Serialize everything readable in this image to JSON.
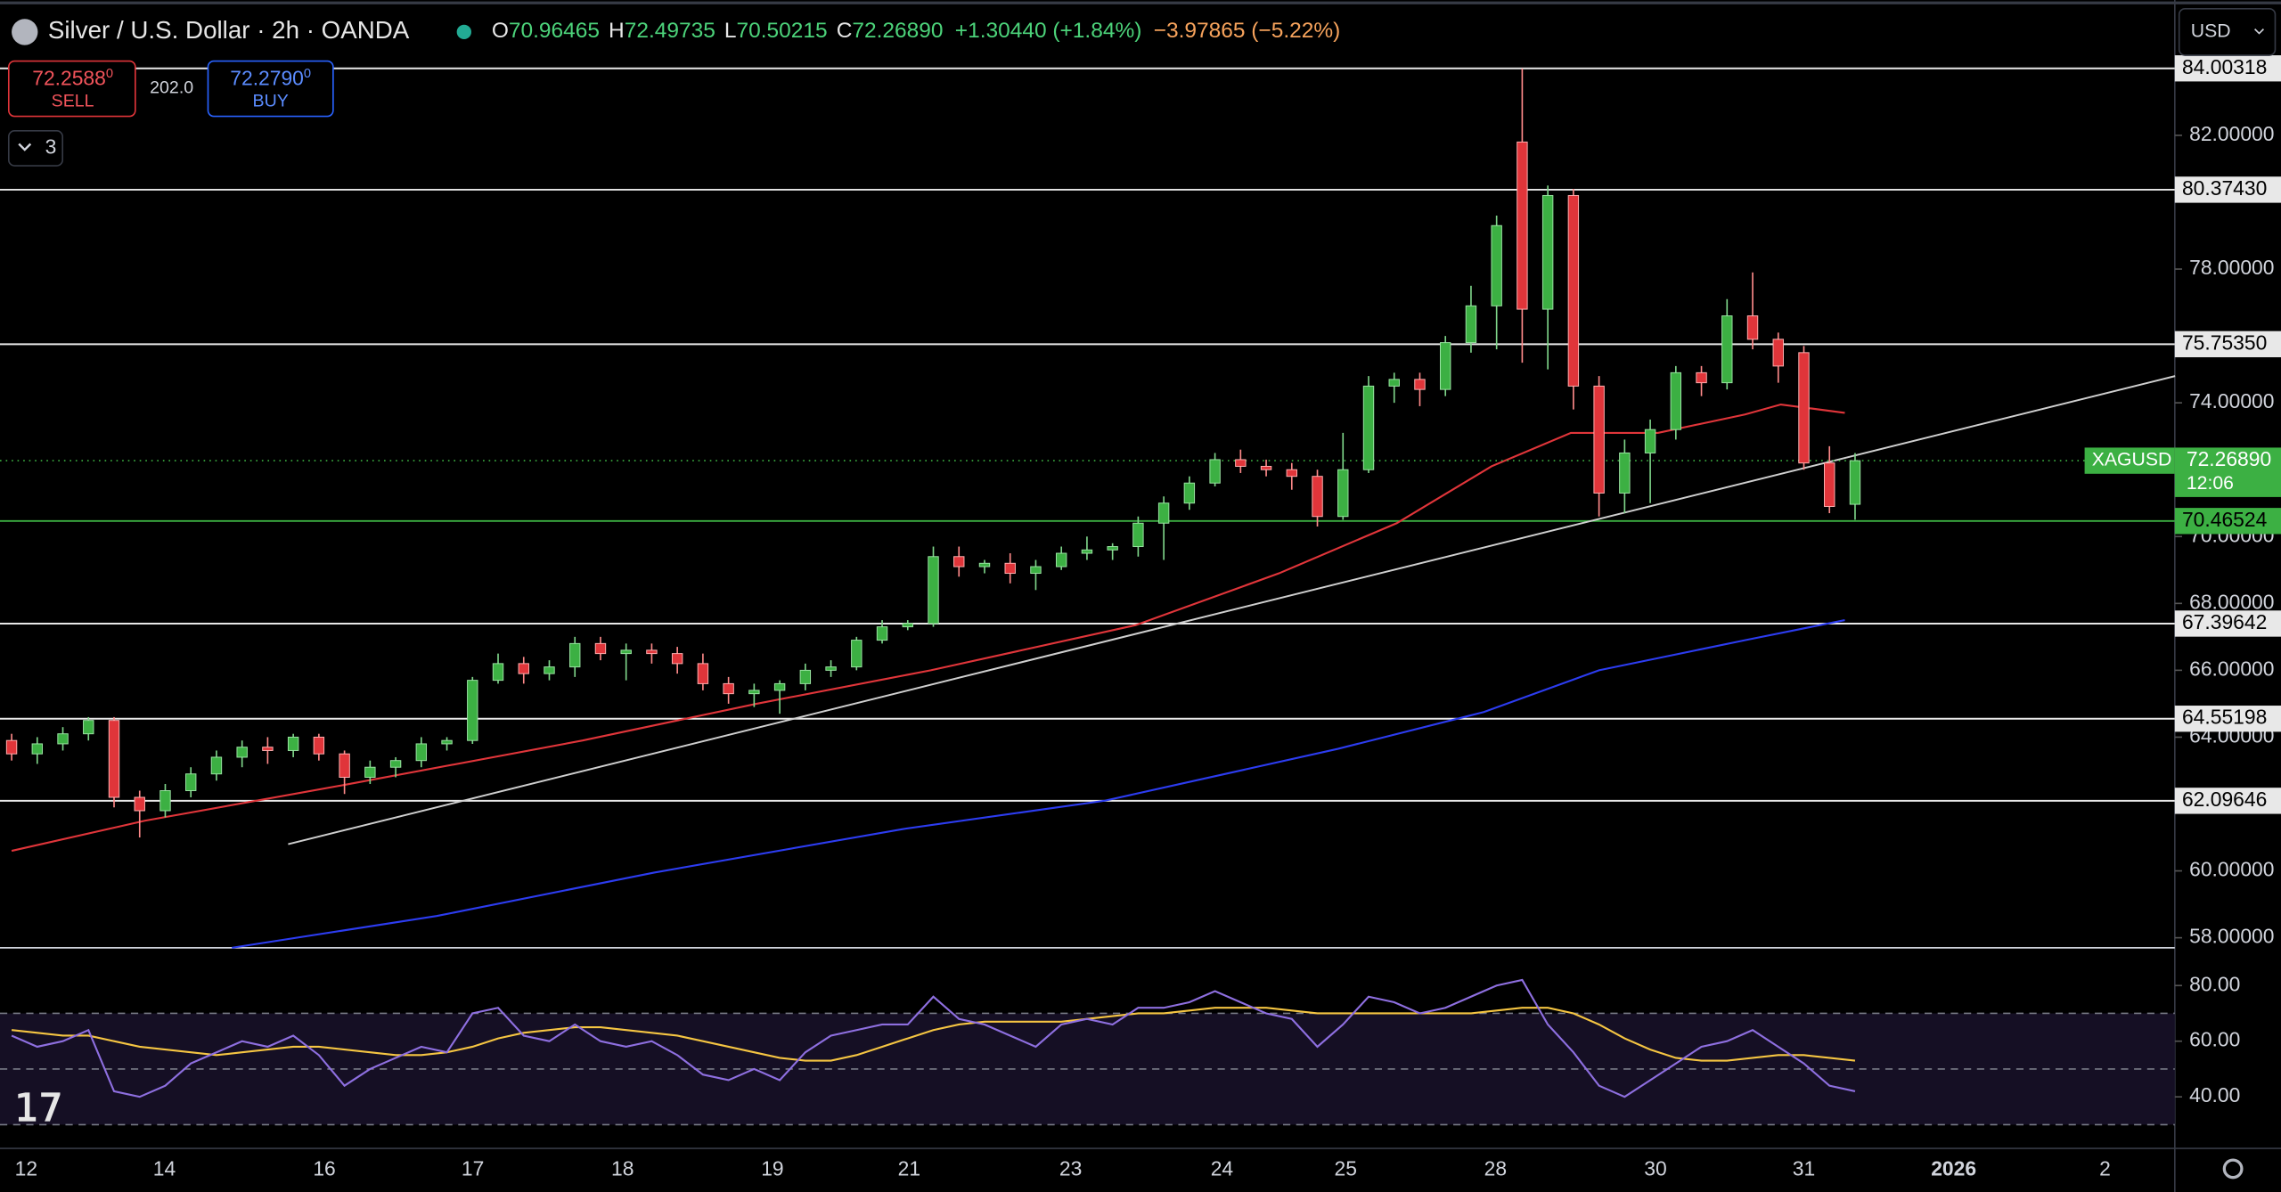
{
  "header": {
    "title": "Silver / U.S. Dollar · 2h · OANDA",
    "ohlc": [
      {
        "key": "O",
        "value": "70.96465"
      },
      {
        "key": "H",
        "value": "72.49735"
      },
      {
        "key": "L",
        "value": "70.50215"
      },
      {
        "key": "C",
        "value": "72.26890"
      }
    ],
    "change": "+1.30440 (+1.84%)",
    "change2": "−3.97865 (−5.22%)"
  },
  "trade": {
    "sell_price": "72.2588",
    "sell_small": "0",
    "sell_label": "SELL",
    "spread": "202.0",
    "buy_price": "72.2790",
    "buy_small": "0",
    "buy_label": "BUY"
  },
  "indicators_count": "3",
  "currency": "USD",
  "chart": {
    "type": "candlestick",
    "ylim": [
      57.7,
      85.7
    ],
    "yticks": [
      {
        "value": 82,
        "label": "82.00000"
      },
      {
        "value": 78,
        "label": "78.00000"
      },
      {
        "value": 74,
        "label": "74.00000"
      },
      {
        "value": 70,
        "label": "70.00000"
      },
      {
        "value": 68,
        "label": "68.00000"
      },
      {
        "value": 66,
        "label": "66.00000"
      },
      {
        "value": 64,
        "label": "64.00000"
      },
      {
        "value": 60,
        "label": "60.00000"
      },
      {
        "value": 58,
        "label": "58.00000"
      }
    ],
    "levels": [
      {
        "value": 84.00318,
        "label": "84.00318"
      },
      {
        "value": 80.3743,
        "label": "80.37430"
      },
      {
        "value": 75.7535,
        "label": "75.75350"
      },
      {
        "value": 67.39642,
        "label": "67.39642"
      },
      {
        "value": 64.55198,
        "label": "64.55198"
      },
      {
        "value": 62.09646,
        "label": "62.09646"
      }
    ],
    "support": {
      "value": 70.46524,
      "label": "70.46524"
    },
    "current": {
      "symbol": "XAGUSD",
      "value": 72.2689,
      "label": "72.26890",
      "countdown": "12:06"
    },
    "candles": [
      [
        63.9,
        64.1,
        63.3,
        63.5
      ],
      [
        63.5,
        64.0,
        63.2,
        63.8
      ],
      [
        63.8,
        64.3,
        63.6,
        64.1
      ],
      [
        64.1,
        64.6,
        63.9,
        64.5
      ],
      [
        64.5,
        64.6,
        61.9,
        62.2
      ],
      [
        62.2,
        62.4,
        61.0,
        61.8
      ],
      [
        61.8,
        62.6,
        61.6,
        62.4
      ],
      [
        62.4,
        63.1,
        62.2,
        62.9
      ],
      [
        62.9,
        63.6,
        62.7,
        63.4
      ],
      [
        63.4,
        63.9,
        63.1,
        63.7
      ],
      [
        63.7,
        64.0,
        63.2,
        63.6
      ],
      [
        63.6,
        64.1,
        63.4,
        64.0
      ],
      [
        64.0,
        64.1,
        63.3,
        63.5
      ],
      [
        63.5,
        63.6,
        62.3,
        62.8
      ],
      [
        62.8,
        63.3,
        62.6,
        63.1
      ],
      [
        63.1,
        63.4,
        62.8,
        63.3
      ],
      [
        63.3,
        64.0,
        63.1,
        63.8
      ],
      [
        63.8,
        64.0,
        63.6,
        63.9
      ],
      [
        63.9,
        65.8,
        63.8,
        65.7
      ],
      [
        65.7,
        66.5,
        65.6,
        66.2
      ],
      [
        66.2,
        66.4,
        65.6,
        65.9
      ],
      [
        65.9,
        66.3,
        65.7,
        66.1
      ],
      [
        66.1,
        67.0,
        65.8,
        66.8
      ],
      [
        66.8,
        67.0,
        66.3,
        66.5
      ],
      [
        66.5,
        66.8,
        65.7,
        66.6
      ],
      [
        66.6,
        66.8,
        66.2,
        66.5
      ],
      [
        66.5,
        66.7,
        65.9,
        66.2
      ],
      [
        66.2,
        66.5,
        65.4,
        65.6
      ],
      [
        65.6,
        65.8,
        65.0,
        65.3
      ],
      [
        65.3,
        65.6,
        64.9,
        65.4
      ],
      [
        65.4,
        65.7,
        64.7,
        65.6
      ],
      [
        65.6,
        66.2,
        65.4,
        66.0
      ],
      [
        66.0,
        66.3,
        65.8,
        66.1
      ],
      [
        66.1,
        67.0,
        66.0,
        66.9
      ],
      [
        66.9,
        67.5,
        66.8,
        67.3
      ],
      [
        67.3,
        67.5,
        67.2,
        67.4
      ],
      [
        67.4,
        69.7,
        67.3,
        69.4
      ],
      [
        69.4,
        69.7,
        68.8,
        69.1
      ],
      [
        69.1,
        69.3,
        68.9,
        69.2
      ],
      [
        69.2,
        69.5,
        68.6,
        68.9
      ],
      [
        68.9,
        69.3,
        68.4,
        69.1
      ],
      [
        69.1,
        69.7,
        69.0,
        69.5
      ],
      [
        69.5,
        70.0,
        69.3,
        69.6
      ],
      [
        69.6,
        69.8,
        69.3,
        69.7
      ],
      [
        69.7,
        70.6,
        69.4,
        70.4
      ],
      [
        70.4,
        71.2,
        69.3,
        71.0
      ],
      [
        71.0,
        71.8,
        70.8,
        71.6
      ],
      [
        71.6,
        72.5,
        71.5,
        72.3
      ],
      [
        72.3,
        72.6,
        71.9,
        72.1
      ],
      [
        72.1,
        72.3,
        71.8,
        72.0
      ],
      [
        72.0,
        72.2,
        71.4,
        71.8
      ],
      [
        71.8,
        72.0,
        70.3,
        70.6
      ],
      [
        70.6,
        73.1,
        70.5,
        72.0
      ],
      [
        72.0,
        74.8,
        71.9,
        74.5
      ],
      [
        74.5,
        74.9,
        74.0,
        74.7
      ],
      [
        74.7,
        74.9,
        73.9,
        74.4
      ],
      [
        74.4,
        76.0,
        74.2,
        75.8
      ],
      [
        75.8,
        77.5,
        75.5,
        76.9
      ],
      [
        76.9,
        79.6,
        75.6,
        79.3
      ],
      [
        81.8,
        84.0,
        75.2,
        76.8
      ],
      [
        76.8,
        80.5,
        75.0,
        80.2
      ],
      [
        80.2,
        80.4,
        73.8,
        74.5
      ],
      [
        74.5,
        74.8,
        70.6,
        71.3
      ],
      [
        71.3,
        72.9,
        70.7,
        72.5
      ],
      [
        72.5,
        73.5,
        71.0,
        73.2
      ],
      [
        73.2,
        75.1,
        72.9,
        74.9
      ],
      [
        74.9,
        75.1,
        74.2,
        74.6
      ],
      [
        74.6,
        77.1,
        74.4,
        76.6
      ],
      [
        76.6,
        77.9,
        75.6,
        75.9
      ],
      [
        75.9,
        76.1,
        74.6,
        75.1
      ],
      [
        75.5,
        75.7,
        72.0,
        72.2
      ],
      [
        72.2,
        72.7,
        70.7,
        70.9
      ],
      [
        70.96465,
        72.49735,
        70.50215,
        72.2689
      ]
    ],
    "ma": [
      {
        "color": "#e0353a",
        "points": [
          [
            0,
            60.6
          ],
          [
            5.2,
            61.5
          ],
          [
            13.2,
            62.6
          ],
          [
            22.3,
            63.9
          ],
          [
            29.1,
            65.0
          ],
          [
            35.9,
            66.0
          ],
          [
            43.9,
            67.35
          ],
          [
            49.5,
            68.9
          ],
          [
            54.1,
            70.4
          ],
          [
            57.8,
            72.1
          ],
          [
            60.9,
            73.1
          ],
          [
            64.3,
            73.1
          ],
          [
            67.7,
            73.65
          ],
          [
            69.1,
            73.95
          ],
          [
            71.6,
            73.7
          ]
        ]
      },
      {
        "color": "#2c3cf0",
        "points": [
          [
            8.6,
            57.7
          ],
          [
            16.6,
            58.65
          ],
          [
            25.1,
            59.95
          ],
          [
            34.8,
            61.25
          ],
          [
            42.7,
            62.1
          ],
          [
            51.8,
            63.65
          ],
          [
            57.5,
            64.75
          ],
          [
            62.0,
            66.0
          ],
          [
            67.7,
            66.9
          ],
          [
            71.6,
            67.5
          ]
        ]
      }
    ],
    "trendline": [
      [
        10.8,
        60.8
      ],
      [
        84.5,
        74.8
      ]
    ],
    "rsi": {
      "ylim": [
        22,
        92
      ],
      "yticks": [
        {
          "value": 80,
          "label": "80.00"
        },
        {
          "value": 60,
          "label": "60.00"
        },
        {
          "value": 40,
          "label": "40.00"
        }
      ],
      "band": [
        30,
        50,
        70
      ],
      "values": [
        62,
        58,
        60,
        64,
        42,
        40,
        44,
        52,
        56,
        60,
        58,
        62,
        55,
        44,
        50,
        54,
        58,
        56,
        70,
        72,
        62,
        60,
        66,
        60,
        58,
        60,
        55,
        48,
        46,
        50,
        46,
        56,
        62,
        64,
        66,
        66,
        76,
        68,
        66,
        62,
        58,
        66,
        68,
        66,
        72,
        72,
        74,
        78,
        74,
        70,
        68,
        58,
        66,
        76,
        74,
        70,
        72,
        76,
        80,
        82,
        66,
        56,
        44,
        40,
        46,
        52,
        58,
        60,
        64,
        58,
        52,
        44,
        42
      ],
      "ma": [
        64,
        63,
        62,
        62,
        60,
        58,
        57,
        56,
        55,
        56,
        57,
        58,
        58,
        57,
        56,
        55,
        55,
        56,
        58,
        61,
        63,
        64,
        65,
        65,
        64,
        63,
        62,
        60,
        58,
        56,
        54,
        53,
        53,
        55,
        58,
        61,
        64,
        66,
        67,
        67,
        67,
        67,
        68,
        69,
        70,
        70,
        71,
        72,
        72,
        72,
        71,
        70,
        70,
        70,
        70,
        70,
        70,
        70,
        71,
        72,
        72,
        70,
        66,
        61,
        57,
        54,
        53,
        53,
        54,
        55,
        55,
        54,
        53
      ]
    },
    "time_labels": [
      "12",
      "14",
      "16",
      "17",
      "18",
      "19",
      "21",
      "23",
      "24",
      "25",
      "28",
      "30",
      "31",
      "2026",
      "2"
    ]
  }
}
